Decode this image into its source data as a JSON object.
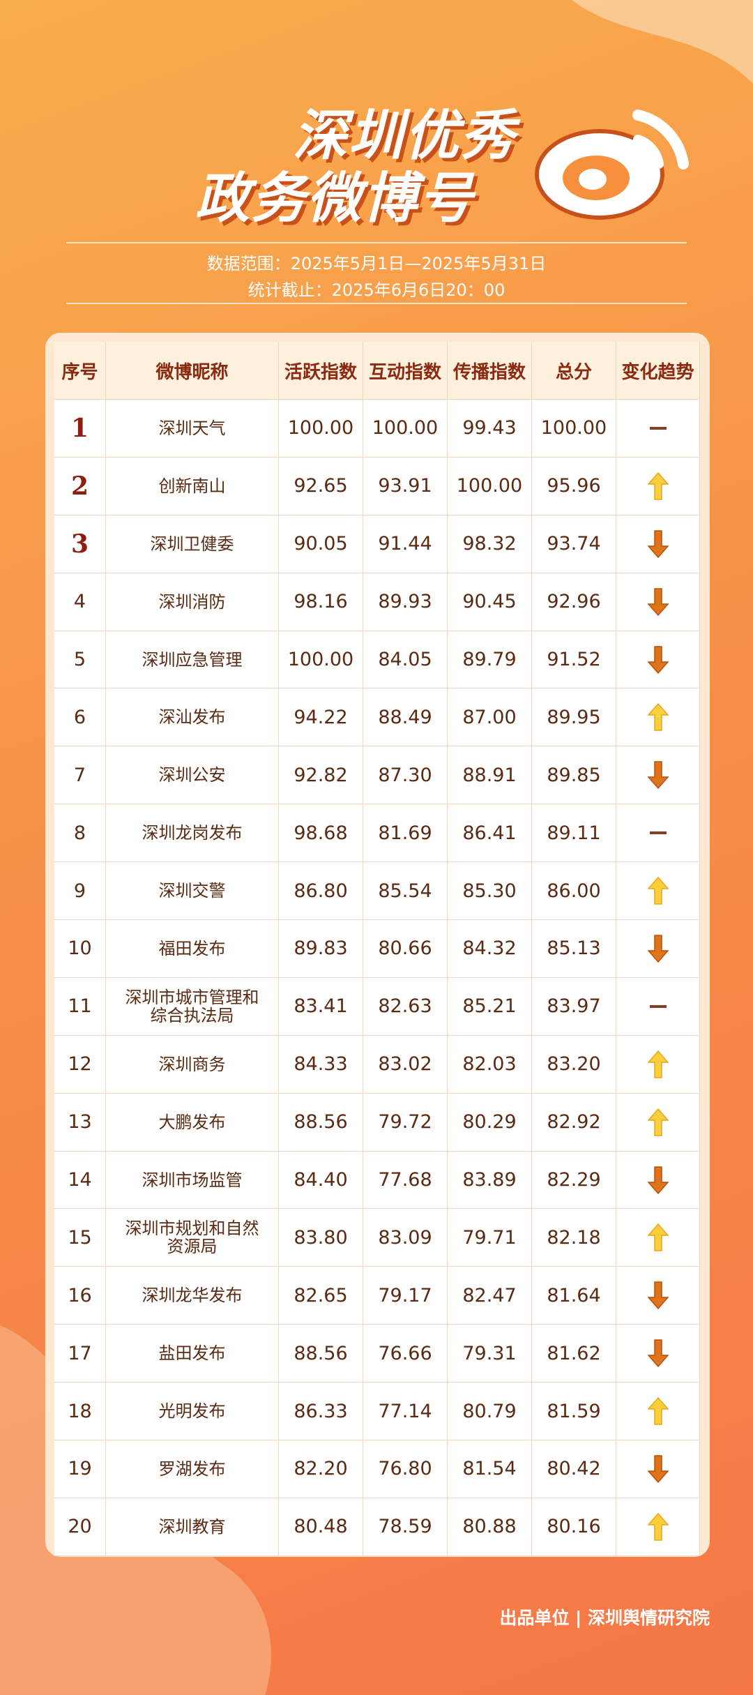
{
  "header": {
    "title_lines": [
      "深圳优秀",
      "政务微博号"
    ],
    "data_range": "数据范围：2025年5月1日—2025年5月31日",
    "cutoff": "统计截止：2025年6月6日20：00"
  },
  "table": {
    "columns": [
      "序号",
      "微博昵称",
      "活跃指数",
      "互动指数",
      "传播指数",
      "总分",
      "变化趋势"
    ],
    "rows": [
      [
        "1",
        "深圳天气",
        "100.00",
        "100.00",
        "99.43",
        "100.00"
      ],
      [
        "2",
        "创新南山",
        "92.65",
        "93.91",
        "100.00",
        "95.96"
      ],
      [
        "3",
        "深圳卫健委",
        "90.05",
        "91.44",
        "98.32",
        "93.74"
      ],
      [
        "4",
        "深圳消防",
        "98.16",
        "89.93",
        "90.45",
        "92.96"
      ],
      [
        "5",
        "深圳应急管理",
        "100.00",
        "84.05",
        "89.79",
        "91.52"
      ],
      [
        "6",
        "深汕发布",
        "94.22",
        "88.49",
        "87.00",
        "89.95"
      ],
      [
        "7",
        "深圳公安",
        "92.82",
        "87.30",
        "88.91",
        "89.85"
      ],
      [
        "8",
        "深圳龙岗发布",
        "98.68",
        "81.69",
        "86.41",
        "89.11"
      ],
      [
        "9",
        "深圳交警",
        "86.80",
        "85.54",
        "85.30",
        "86.00"
      ],
      [
        "10",
        "福田发布",
        "89.83",
        "80.66",
        "84.32",
        "85.13"
      ],
      [
        "11",
        "深圳市城市管理和综合执法局",
        "83.41",
        "82.63",
        "85.21",
        "83.97"
      ],
      [
        "12",
        "深圳商务",
        "84.33",
        "83.02",
        "82.03",
        "83.20"
      ],
      [
        "13",
        "大鹏发布",
        "88.56",
        "79.72",
        "80.29",
        "82.92"
      ],
      [
        "14",
        "深圳市场监管",
        "84.40",
        "77.68",
        "83.89",
        "82.29"
      ],
      [
        "15",
        "深圳市规划和自然资源局",
        "83.80",
        "83.09",
        "79.71",
        "82.18"
      ],
      [
        "16",
        "深圳龙华发布",
        "82.65",
        "79.17",
        "82.47",
        "81.64"
      ],
      [
        "17",
        "盐田发布",
        "88.56",
        "76.66",
        "79.31",
        "81.62"
      ],
      [
        "18",
        "光明发布",
        "86.33",
        "77.14",
        "80.79",
        "81.59"
      ],
      [
        "19",
        "罗湖发布",
        "82.20",
        "76.80",
        "81.54",
        "80.42"
      ],
      [
        "20",
        "深圳教育",
        "80.48",
        "78.59",
        "80.88",
        "80.16"
      ]
    ],
    "trends": [
      "flat",
      "up",
      "down",
      "down",
      "down",
      "up",
      "down",
      "flat",
      "up",
      "down",
      "flat",
      "up",
      "up",
      "down",
      "up",
      "down",
      "down",
      "up",
      "down",
      "up"
    ]
  },
  "footer": "出品单位 | 深圳舆情研究院"
}
